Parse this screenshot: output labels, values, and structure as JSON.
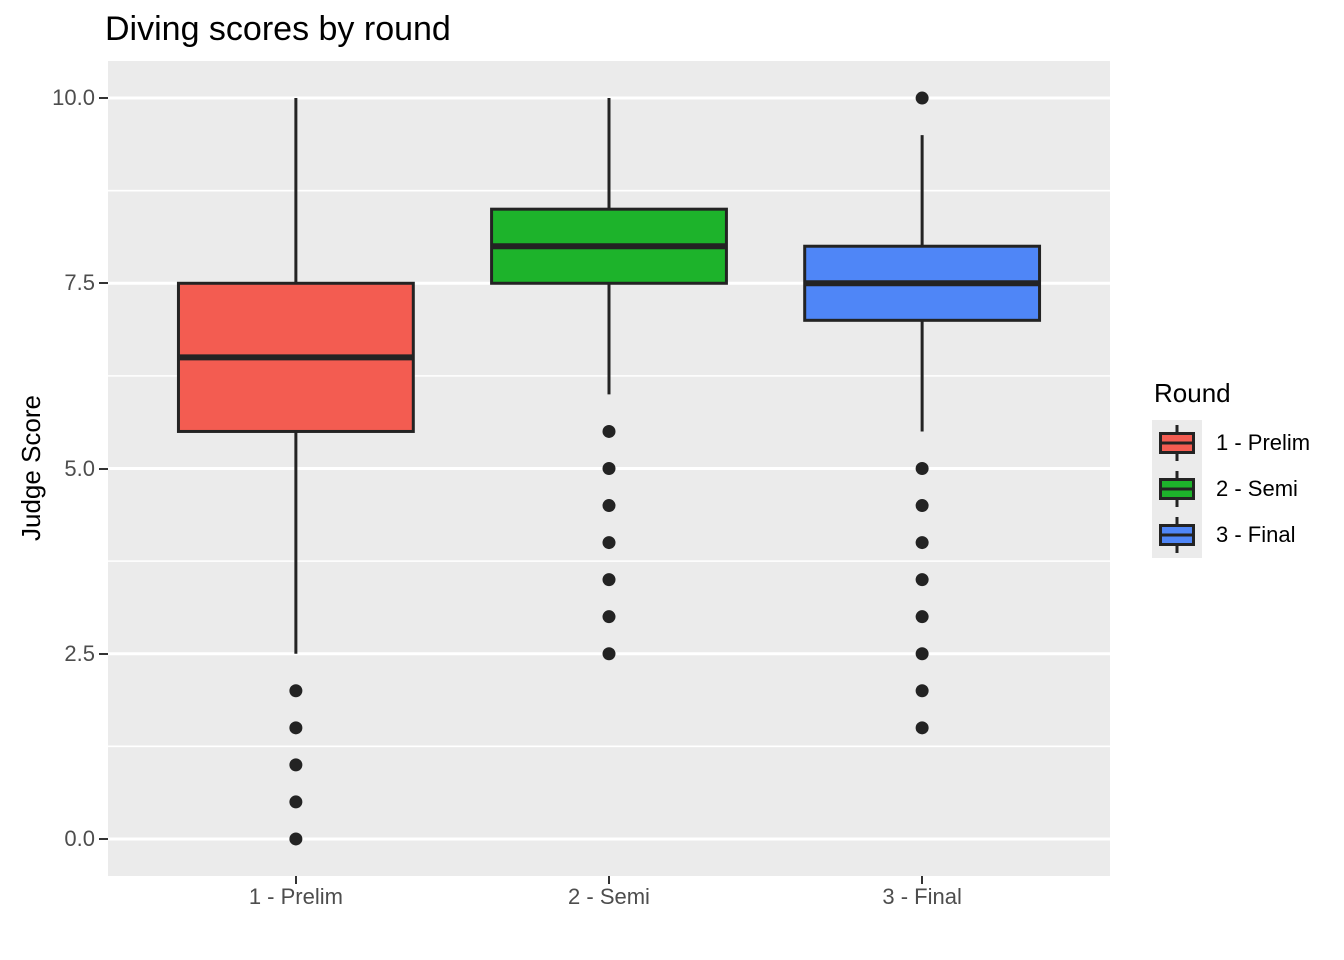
{
  "title": "Diving scores by round",
  "chart_data": {
    "type": "boxplot",
    "title": "Diving scores by round",
    "xlabel": "",
    "ylabel": "Judge Score",
    "categories": [
      "1 - Prelim",
      "2 - Semi",
      "3 - Final"
    ],
    "ylim": [
      -0.5,
      10.5
    ],
    "yticks": {
      "values": [
        0,
        2.5,
        5,
        7.5,
        10
      ],
      "labels": [
        "0.0",
        "2.5",
        "5.0",
        "7.5",
        "10.0"
      ]
    },
    "minor_ticks": [
      1.25,
      3.75,
      6.25,
      8.75
    ],
    "grid": true,
    "legend": {
      "title": "Round",
      "position": "right"
    },
    "colors": {
      "panel_bg": "#EBEBEB",
      "grid": "#FFFFFF",
      "stroke": "#232323",
      "axis_text": "#4D4D4D",
      "tick_mark": "#333333"
    },
    "series": [
      {
        "name": "1 - Prelim",
        "fill": "#F35C51",
        "q1": 5.5,
        "median": 6.5,
        "q3": 7.5,
        "whisker_low": 2.5,
        "whisker_high": 10.0,
        "outliers": [
          2.0,
          1.5,
          1.0,
          0.5,
          0.0
        ]
      },
      {
        "name": "2 - Semi",
        "fill": "#1DB32B",
        "q1": 7.5,
        "median": 8.0,
        "q3": 8.5,
        "whisker_low": 6.0,
        "whisker_high": 10.0,
        "outliers": [
          5.5,
          5.0,
          4.5,
          4.0,
          3.5,
          3.0,
          2.5
        ]
      },
      {
        "name": "3 - Final",
        "fill": "#4F86F7",
        "q1": 7.0,
        "median": 7.5,
        "q3": 8.0,
        "whisker_low": 5.5,
        "whisker_high": 9.5,
        "outliers": [
          10.0,
          5.0,
          4.5,
          4.0,
          3.5,
          3.0,
          2.5,
          2.0,
          1.5
        ]
      }
    ]
  }
}
